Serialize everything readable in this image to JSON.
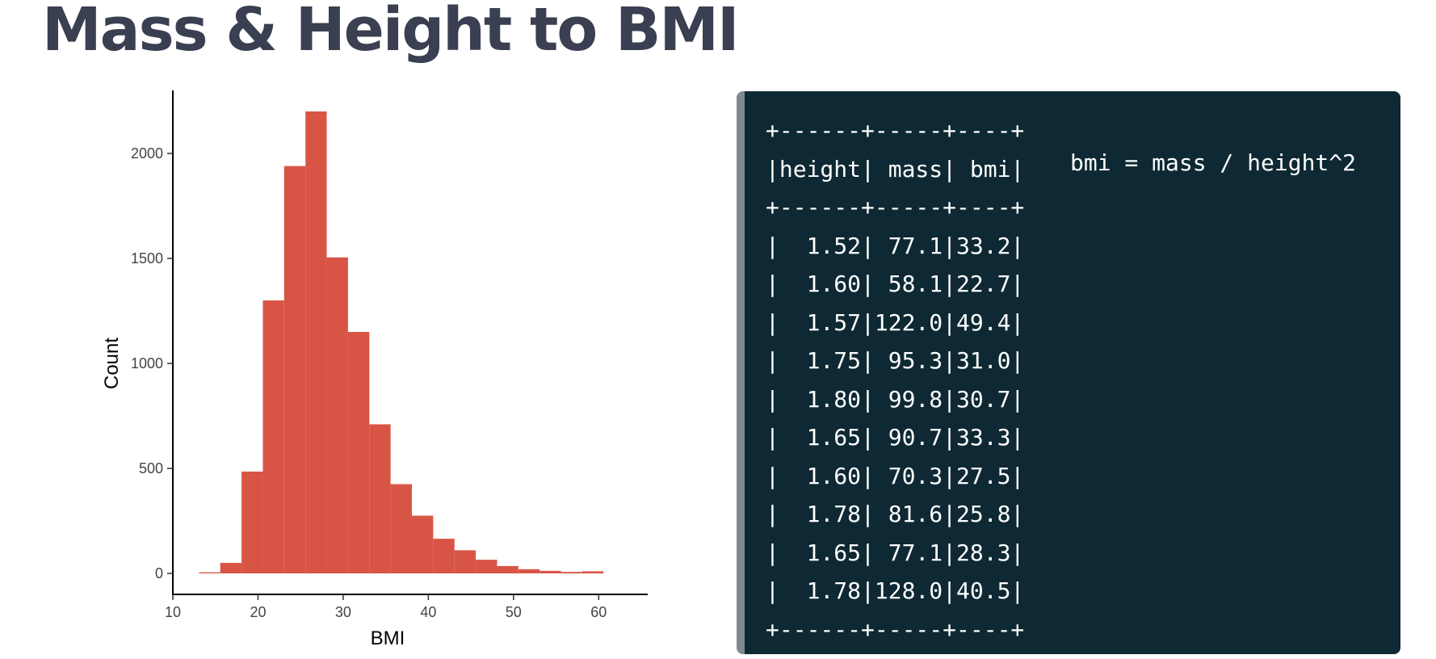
{
  "title": "Mass & Height to BMI",
  "chart_data": {
    "type": "bar",
    "subtype": "histogram",
    "xlabel": "BMI",
    "ylabel": "Count",
    "xlim": [
      10,
      65
    ],
    "ylim": [
      0,
      2300
    ],
    "xticks": [
      10,
      20,
      30,
      40,
      50,
      60
    ],
    "xtick_labels": [
      "10",
      "20",
      "30",
      "40",
      "50",
      "60"
    ],
    "yticks": [
      0,
      500,
      1000,
      1500,
      2000
    ],
    "ytick_labels": [
      "0",
      "500",
      "1000",
      "1500",
      "2000"
    ],
    "bin_width": 2.5,
    "bins_start": [
      12.5,
      15,
      17.5,
      20,
      22.5,
      25,
      27.5,
      30,
      32.5,
      35,
      37.5,
      40,
      42.5,
      45,
      47.5,
      50,
      52.5,
      55,
      57.5
    ],
    "values": [
      5,
      50,
      485,
      1300,
      1940,
      2200,
      1505,
      1150,
      710,
      425,
      275,
      165,
      110,
      65,
      35,
      20,
      12,
      7,
      10
    ],
    "bar_color": "#d85545",
    "grid": false
  },
  "code": {
    "lines": [
      "+------+-----+----+",
      "|height| mass| bmi|",
      "+------+-----+----+",
      "|  1.52| 77.1|33.2|",
      "|  1.60| 58.1|22.7|",
      "|  1.57|122.0|49.4|",
      "|  1.75| 95.3|31.0|",
      "|  1.80| 99.8|30.7|",
      "|  1.65| 90.7|33.3|",
      "|  1.60| 70.3|27.5|",
      "|  1.78| 81.6|25.8|",
      "|  1.65| 77.1|28.3|",
      "|  1.78|128.0|40.5|",
      "+------+-----+----+"
    ],
    "formula": "bmi = mass / height^2"
  }
}
